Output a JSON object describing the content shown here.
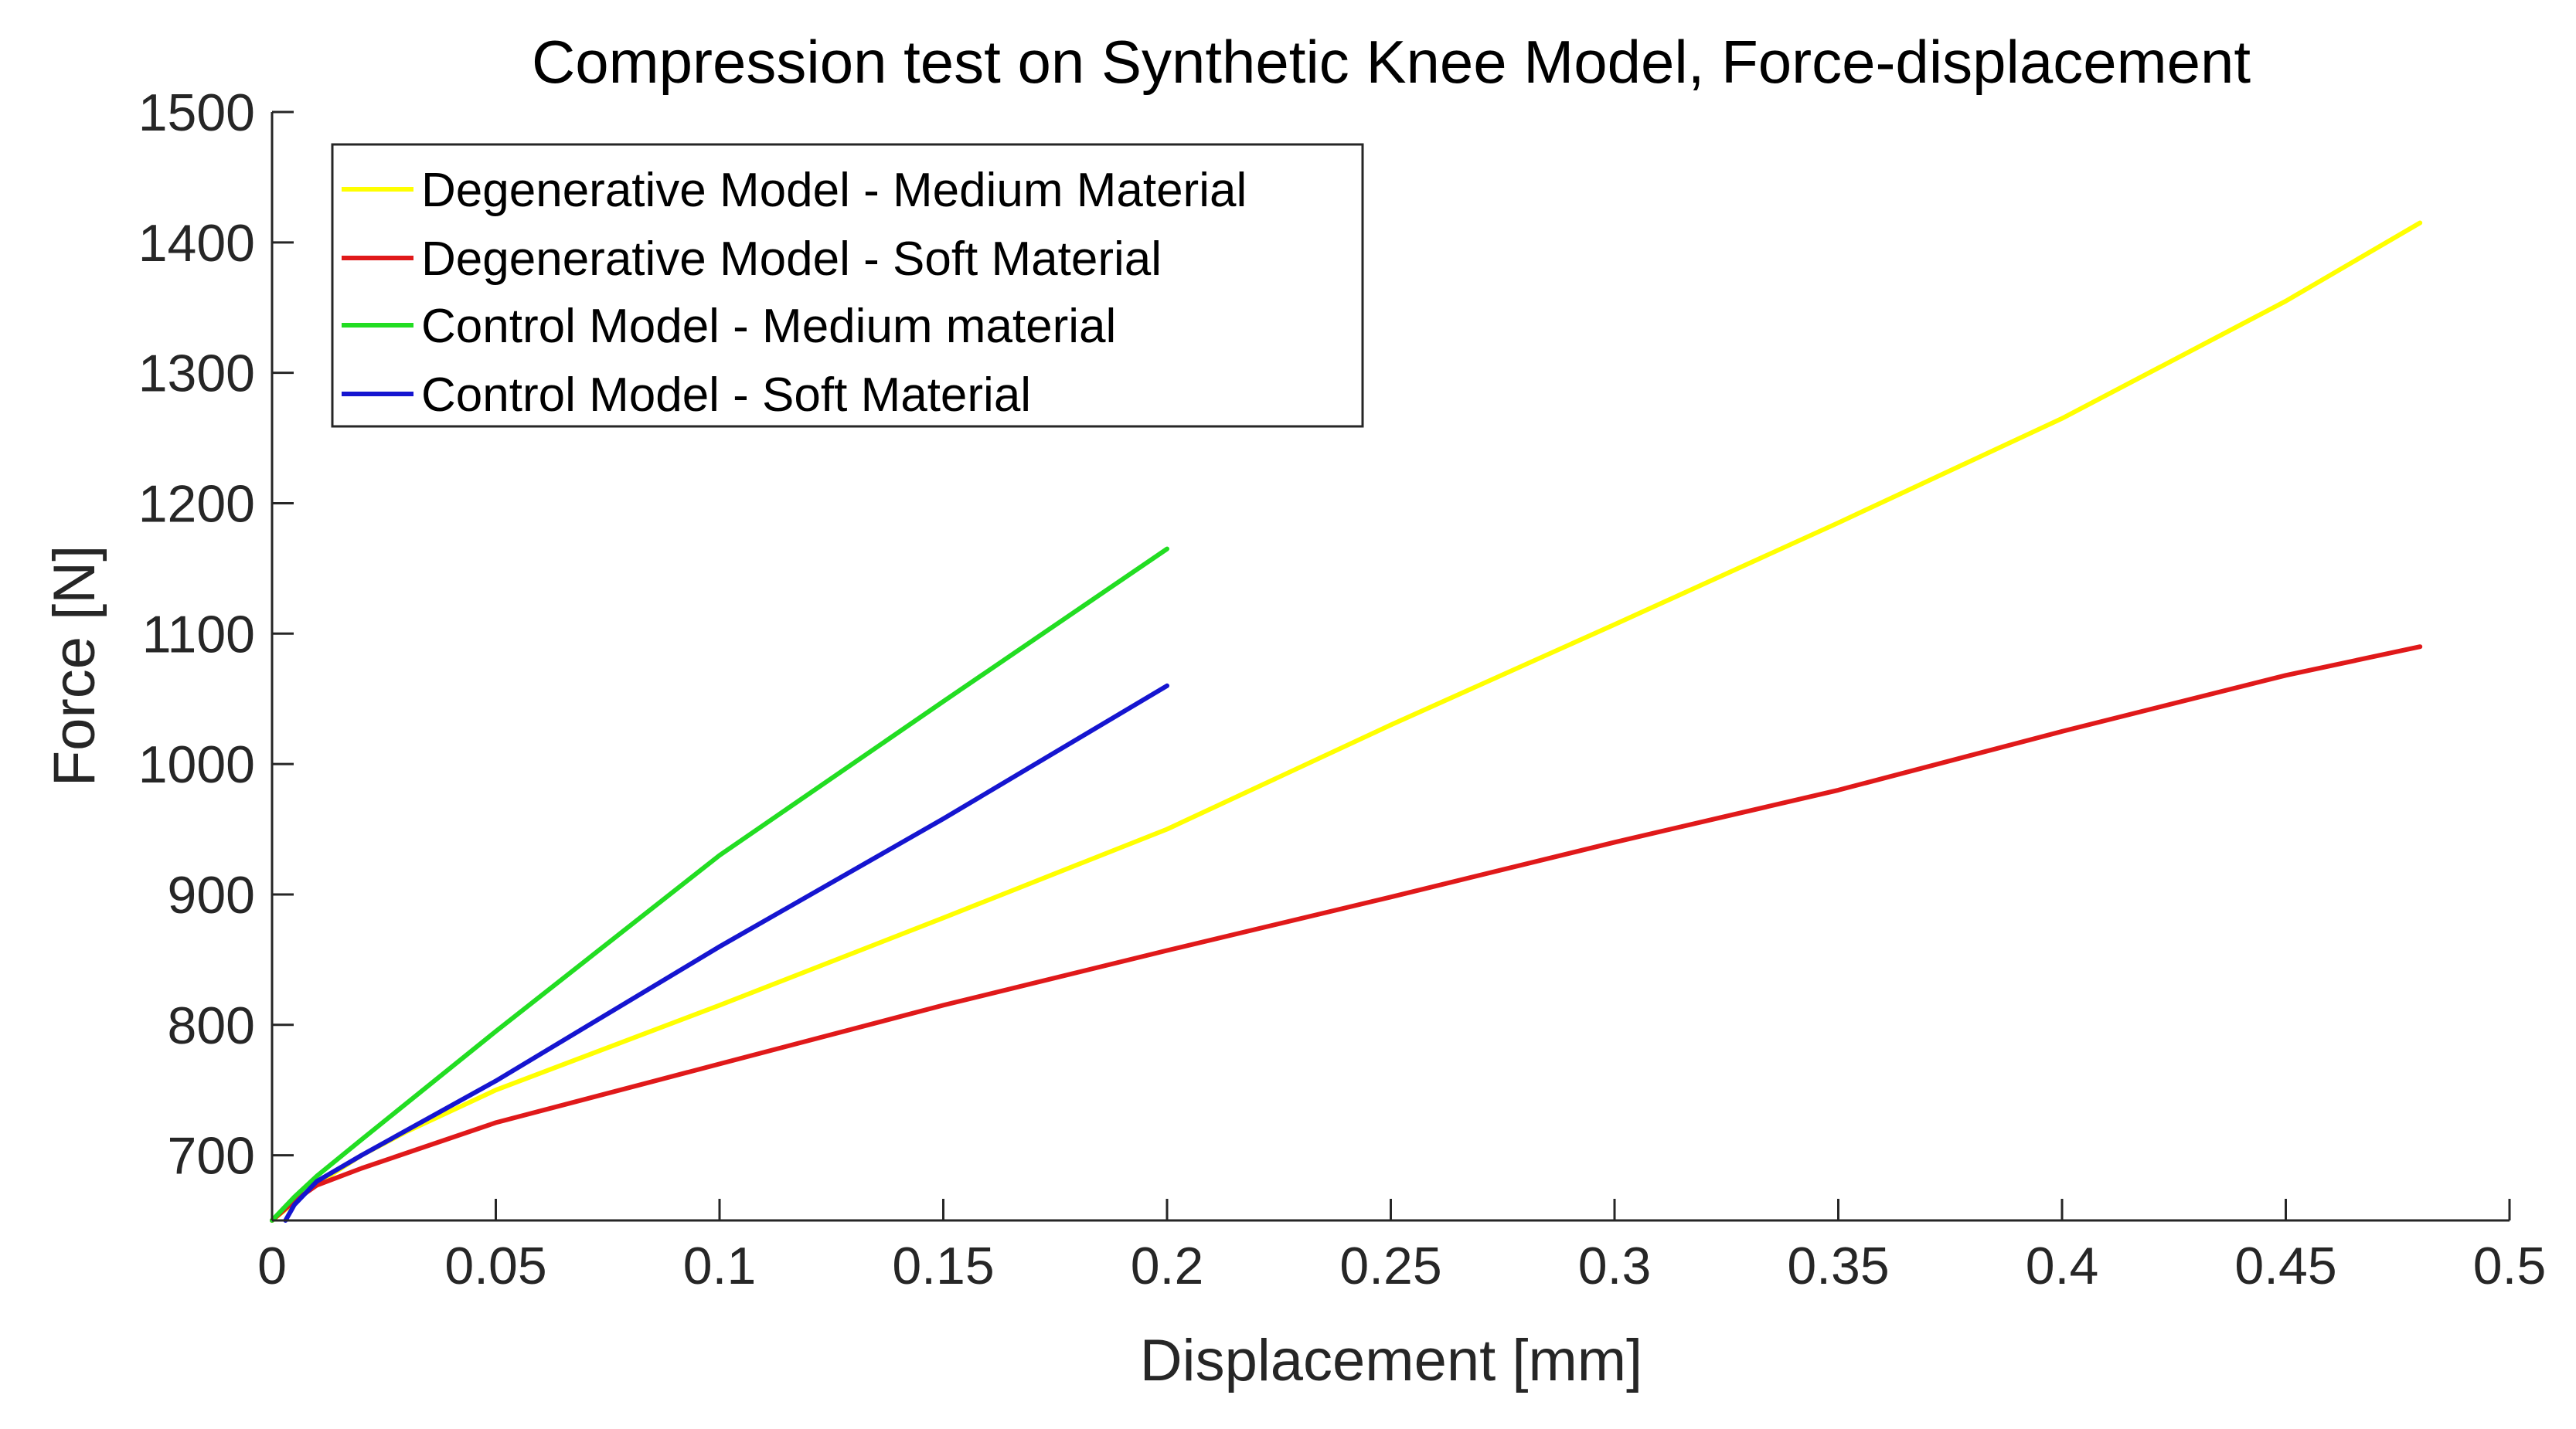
{
  "chart_data": {
    "type": "line",
    "title": "Compression test on Synthetic Knee Model, Force-displacement",
    "xlabel": "Displacement [mm]",
    "ylabel": "Force [N]",
    "xlim": [
      0,
      0.5
    ],
    "ylim": [
      650,
      1500
    ],
    "xticks": [
      0,
      0.05,
      0.1,
      0.15,
      0.2,
      0.25,
      0.3,
      0.35,
      0.4,
      0.45,
      0.5
    ],
    "xtick_labels": [
      "0",
      "0.05",
      "0.1",
      "0.15",
      "0.2",
      "0.25",
      "0.3",
      "0.35",
      "0.4",
      "0.45",
      "0.5"
    ],
    "yticks": [
      700,
      800,
      900,
      1000,
      1100,
      1200,
      1300,
      1400,
      1500
    ],
    "ytick_labels": [
      "700",
      "800",
      "900",
      "1000",
      "1100",
      "1200",
      "1300",
      "1400",
      "1500"
    ],
    "grid": false,
    "legend_position": "top-left",
    "series": [
      {
        "name": "Degenerative Model - Medium Material",
        "color": "#FFFF00",
        "x": [
          0,
          0.01,
          0.02,
          0.03,
          0.05,
          0.1,
          0.15,
          0.2,
          0.25,
          0.3,
          0.35,
          0.4,
          0.45,
          0.48
        ],
        "y": [
          650,
          678,
          700,
          718,
          750,
          815,
          882,
          950,
          1030,
          1107,
          1185,
          1265,
          1355,
          1415
        ]
      },
      {
        "name": "Degenerative Model - Soft Material",
        "color": "#E0191A",
        "x": [
          0,
          0.005,
          0.01,
          0.02,
          0.05,
          0.1,
          0.15,
          0.2,
          0.25,
          0.3,
          0.35,
          0.4,
          0.45,
          0.48
        ],
        "y": [
          650,
          665,
          677,
          690,
          725,
          770,
          815,
          857,
          898,
          940,
          980,
          1025,
          1068,
          1090
        ]
      },
      {
        "name": "Control Model - Medium material",
        "color": "#22DD22",
        "x": [
          0,
          0.005,
          0.01,
          0.02,
          0.05,
          0.1,
          0.15,
          0.2
        ],
        "y": [
          650,
          668,
          684,
          712,
          795,
          930,
          1048,
          1165
        ]
      },
      {
        "name": "Control Model - Soft Material",
        "color": "#1515D0",
        "x": [
          0.003,
          0.005,
          0.01,
          0.02,
          0.05,
          0.1,
          0.15,
          0.2
        ],
        "y": [
          650,
          662,
          680,
          700,
          757,
          860,
          958,
          1060
        ]
      }
    ]
  }
}
